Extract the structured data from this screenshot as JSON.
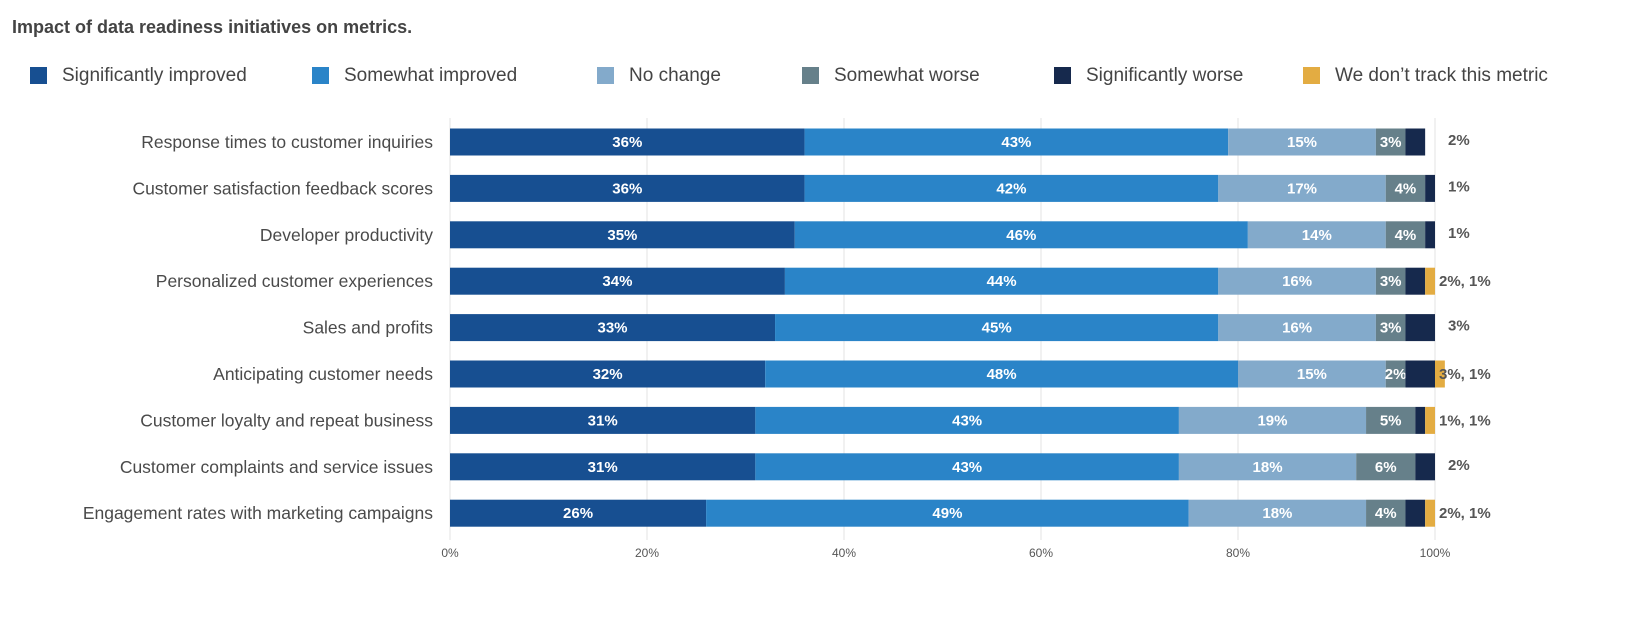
{
  "chart_data": {
    "type": "bar",
    "orientation": "horizontal",
    "stacked": true,
    "title": "Impact of data readiness initiatives on metrics.",
    "categories": [
      "Response times to customer inquiries",
      "Customer satisfaction feedback scores",
      "Developer productivity",
      "Personalized customer experiences",
      "Sales and profits",
      "Anticipating customer needs",
      "Customer loyalty and repeat business",
      "Customer complaints and service issues",
      "Engagement rates with marketing campaigns"
    ],
    "series": [
      {
        "name": "Significantly improved",
        "color": "#174f91",
        "values": [
          36,
          36,
          35,
          34,
          33,
          32,
          31,
          31,
          26
        ],
        "labels": [
          "36%",
          "36%",
          "35%",
          "34%",
          "33%",
          "32%",
          "31%",
          "31%",
          "26%"
        ]
      },
      {
        "name": "Somewhat improved",
        "color": "#2a84c8",
        "values": [
          43,
          42,
          46,
          44,
          45,
          48,
          43,
          43,
          49
        ],
        "labels": [
          "43%",
          "42%",
          "46%",
          "44%",
          "45%",
          "48%",
          "43%",
          "43%",
          "49%"
        ]
      },
      {
        "name": "No change",
        "color": "#83aacb",
        "values": [
          15,
          17,
          14,
          16,
          16,
          15,
          19,
          18,
          18
        ],
        "labels": [
          "15%",
          "17%",
          "14%",
          "16%",
          "16%",
          "15%",
          "19%",
          "18%",
          "18%"
        ]
      },
      {
        "name": "Somewhat worse",
        "color": "#66808a",
        "values": [
          3,
          4,
          4,
          3,
          3,
          2,
          5,
          6,
          4
        ],
        "labels": [
          "3%",
          "4%",
          "4%",
          "3%",
          "3%",
          "2%",
          "5%",
          "6%",
          "4%"
        ]
      },
      {
        "name": "Significantly worse",
        "color": "#16294d",
        "values": [
          2,
          1,
          1,
          2,
          3,
          3,
          1,
          2,
          2
        ],
        "labels": [
          "",
          "",
          "",
          "",
          "",
          "",
          "",
          "",
          ""
        ]
      },
      {
        "name": "We don’t track this metric",
        "color": "#e3ac42",
        "values": [
          0,
          0,
          0,
          1,
          0,
          1,
          1,
          0,
          1
        ],
        "labels": [
          "",
          "",
          "",
          "",
          "",
          "",
          "",
          "",
          ""
        ]
      }
    ],
    "side_labels": [
      "2%",
      "1%",
      "1%",
      "2%, 1%",
      "3%",
      "3%, 1%",
      "1%, 1%",
      "2%",
      "2%, 1%"
    ],
    "xticks": [
      "0%",
      "20%",
      "40%",
      "60%",
      "80%",
      "100%"
    ],
    "xlim": [
      0,
      100
    ],
    "grid": true,
    "legend_position": "top"
  }
}
